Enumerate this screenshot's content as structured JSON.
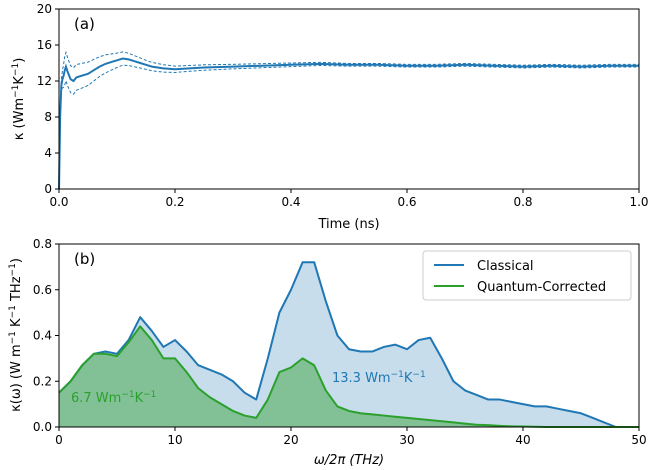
{
  "colors": {
    "classical": "#1f77b4",
    "quantum": "#2ca02c",
    "axis": "#000000"
  },
  "chart_data": [
    {
      "type": "line",
      "panel_label": "(a)",
      "xlabel": "Time (ns)",
      "ylabel_parts": [
        "κ",
        " (Wm",
        "−1",
        "K",
        "−1",
        ")"
      ],
      "xlim": [
        0,
        1.0
      ],
      "ylim": [
        0,
        20
      ],
      "xticks": [
        0,
        0.2,
        0.4,
        0.6,
        0.8,
        1.0
      ],
      "xtick_labels": [
        "0.0",
        "0.2",
        "0.4",
        "0.6",
        "0.8",
        "1.0"
      ],
      "yticks": [
        0,
        4,
        8,
        12,
        16,
        20
      ],
      "ytick_labels": [
        "0",
        "4",
        "8",
        "12",
        "16",
        "20"
      ],
      "grid": false,
      "mean": {
        "x": [
          0,
          0.002,
          0.004,
          0.006,
          0.008,
          0.01,
          0.012,
          0.015,
          0.02,
          0.025,
          0.03,
          0.04,
          0.05,
          0.06,
          0.07,
          0.08,
          0.09,
          0.1,
          0.11,
          0.12,
          0.13,
          0.14,
          0.15,
          0.16,
          0.17,
          0.18,
          0.2,
          0.25,
          0.3,
          0.35,
          0.4,
          0.45,
          0.5,
          0.55,
          0.6,
          0.65,
          0.7,
          0.75,
          0.8,
          0.85,
          0.9,
          0.95,
          1.0
        ],
        "y": [
          0,
          8.0,
          11.5,
          12.2,
          12.6,
          13.2,
          13.6,
          13.0,
          12.2,
          12.0,
          12.4,
          12.6,
          12.8,
          13.2,
          13.6,
          13.9,
          14.1,
          14.3,
          14.5,
          14.4,
          14.2,
          14.0,
          13.8,
          13.6,
          13.5,
          13.4,
          13.3,
          13.5,
          13.6,
          13.7,
          13.8,
          13.9,
          13.8,
          13.8,
          13.7,
          13.7,
          13.8,
          13.7,
          13.6,
          13.7,
          13.6,
          13.7,
          13.7
        ]
      },
      "band_half_width": {
        "x": [
          0,
          0.01,
          0.02,
          0.05,
          0.1,
          0.15,
          0.2,
          0.3,
          0.4,
          0.5,
          1.0
        ],
        "y": [
          0,
          1.6,
          1.5,
          1.3,
          0.8,
          0.5,
          0.35,
          0.25,
          0.2,
          0.15,
          0.15
        ]
      }
    },
    {
      "type": "area",
      "panel_label": "(b)",
      "xlabel": "ω/2π (THz)",
      "ylabel_parts": [
        "κ(ω) (W m",
        "−1",
        " K",
        "−1",
        " THz",
        "−1",
        ")"
      ],
      "xlim": [
        0,
        50
      ],
      "ylim": [
        0,
        0.8
      ],
      "xticks": [
        0,
        10,
        20,
        30,
        40,
        50
      ],
      "xtick_labels": [
        "0",
        "10",
        "20",
        "30",
        "40",
        "50"
      ],
      "yticks": [
        0,
        0.2,
        0.4,
        0.6,
        0.8
      ],
      "ytick_labels": [
        "0.0",
        "0.2",
        "0.4",
        "0.6",
        "0.8"
      ],
      "grid": false,
      "legend_position": "top-right",
      "series": [
        {
          "name": "Classical",
          "x": [
            0,
            1,
            2,
            3,
            4,
            5,
            6,
            7,
            8,
            9,
            10,
            11,
            12,
            13,
            14,
            15,
            16,
            17,
            18,
            19,
            20,
            21,
            22,
            23,
            24,
            25,
            26,
            27,
            28,
            29,
            30,
            31,
            32,
            33,
            34,
            35,
            36,
            37,
            38,
            39,
            40,
            41,
            42,
            43,
            44,
            45,
            46,
            47,
            48,
            49,
            50
          ],
          "y": [
            0.15,
            0.2,
            0.27,
            0.32,
            0.33,
            0.32,
            0.38,
            0.48,
            0.42,
            0.35,
            0.38,
            0.33,
            0.27,
            0.25,
            0.23,
            0.2,
            0.15,
            0.12,
            0.3,
            0.5,
            0.6,
            0.72,
            0.72,
            0.55,
            0.4,
            0.34,
            0.33,
            0.33,
            0.35,
            0.36,
            0.34,
            0.38,
            0.39,
            0.3,
            0.2,
            0.16,
            0.14,
            0.12,
            0.12,
            0.11,
            0.1,
            0.09,
            0.09,
            0.08,
            0.07,
            0.06,
            0.04,
            0.02,
            0.0,
            0.0,
            0.0
          ],
          "annotation": [
            "13.3 Wm",
            "−1",
            "K",
            "−1"
          ]
        },
        {
          "name": "Quantum-Corrected",
          "x": [
            0,
            1,
            2,
            3,
            4,
            5,
            6,
            7,
            8,
            9,
            10,
            11,
            12,
            13,
            14,
            15,
            16,
            17,
            18,
            19,
            20,
            21,
            22,
            23,
            24,
            25,
            26,
            27,
            28,
            29,
            30,
            31,
            32,
            33,
            34,
            35,
            36,
            37,
            38,
            39,
            40,
            41,
            42,
            43,
            44,
            45,
            46,
            47,
            48,
            49,
            50
          ],
          "y": [
            0.15,
            0.2,
            0.27,
            0.32,
            0.32,
            0.31,
            0.37,
            0.44,
            0.38,
            0.3,
            0.3,
            0.24,
            0.17,
            0.13,
            0.1,
            0.07,
            0.05,
            0.04,
            0.12,
            0.24,
            0.26,
            0.3,
            0.27,
            0.16,
            0.09,
            0.07,
            0.06,
            0.055,
            0.05,
            0.045,
            0.04,
            0.035,
            0.03,
            0.025,
            0.02,
            0.015,
            0.01,
            0.008,
            0.005,
            0.003,
            0.002,
            0.001,
            0.0,
            0.0,
            0.0,
            0.0,
            0.0,
            0.0,
            0.0,
            0.0,
            0.0
          ],
          "annotation": [
            "6.7 Wm",
            "−1",
            "K",
            "−1"
          ]
        }
      ]
    }
  ]
}
